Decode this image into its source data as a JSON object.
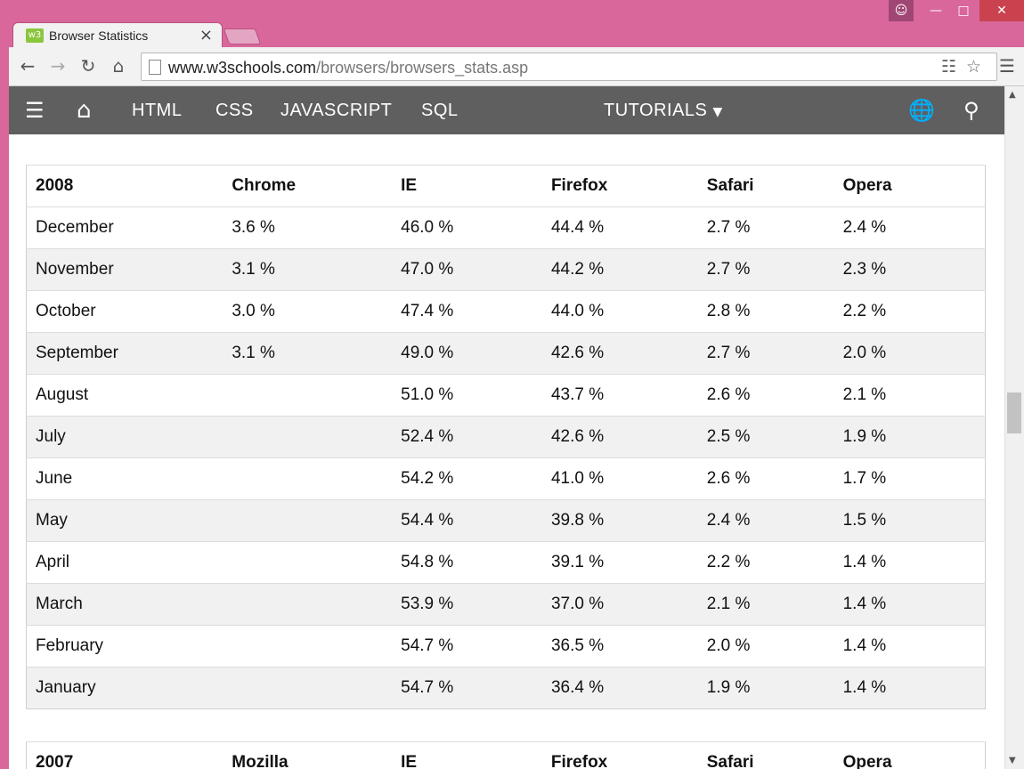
{
  "browser": {
    "tab_title": "Browser Statistics",
    "tab_favicon_text": "w3",
    "url_domain": "www.w3schools.com",
    "url_path": "/browsers/browsers_stats.asp"
  },
  "nav": {
    "items": [
      "HTML",
      "CSS",
      "JAVASCRIPT",
      "SQL"
    ],
    "tutorials_label": "TUTORIALS"
  },
  "table2008": {
    "headers": [
      "2008",
      "Chrome",
      "IE",
      "Firefox",
      "Safari",
      "Opera"
    ],
    "rows": [
      [
        "December",
        "3.6 %",
        "46.0 %",
        "44.4 %",
        "2.7 %",
        "2.4 %"
      ],
      [
        "November",
        "3.1 %",
        "47.0 %",
        "44.2 %",
        "2.7 %",
        "2.3 %"
      ],
      [
        "October",
        "3.0 %",
        "47.4 %",
        "44.0 %",
        "2.8 %",
        "2.2 %"
      ],
      [
        "September",
        "3.1 %",
        "49.0 %",
        "42.6 %",
        "2.7 %",
        "2.0 %"
      ],
      [
        "August",
        "",
        "51.0 %",
        "43.7 %",
        "2.6 %",
        "2.1 %"
      ],
      [
        "July",
        "",
        "52.4 %",
        "42.6 %",
        "2.5 %",
        "1.9 %"
      ],
      [
        "June",
        "",
        "54.2 %",
        "41.0 %",
        "2.6 %",
        "1.7 %"
      ],
      [
        "May",
        "",
        "54.4 %",
        "39.8 %",
        "2.4 %",
        "1.5 %"
      ],
      [
        "April",
        "",
        "54.8 %",
        "39.1 %",
        "2.2 %",
        "1.4 %"
      ],
      [
        "March",
        "",
        "53.9 %",
        "37.0 %",
        "2.1 %",
        "1.4 %"
      ],
      [
        "February",
        "",
        "54.7 %",
        "36.5 %",
        "2.0 %",
        "1.4 %"
      ],
      [
        "January",
        "",
        "54.7 %",
        "36.4 %",
        "1.9 %",
        "1.4 %"
      ]
    ]
  },
  "table2007": {
    "headers": [
      "2007",
      "Mozilla",
      "IE",
      "Firefox",
      "Safari",
      "Opera"
    ]
  }
}
